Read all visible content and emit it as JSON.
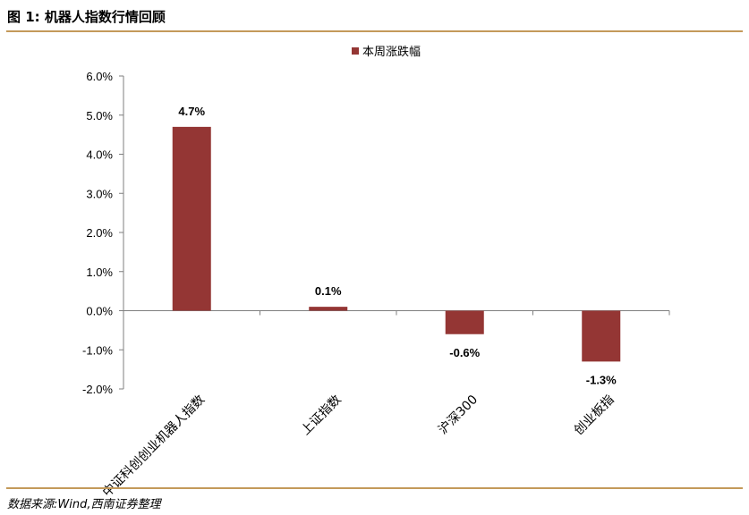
{
  "figure": {
    "title": "图 1:  机器人指数行情回顾",
    "source": "数据来源:Wind,西南证券整理"
  },
  "chart_data": {
    "type": "bar",
    "categories": [
      "中证科创创业机器人指数",
      "上证指数",
      "沪深300",
      "创业板指"
    ],
    "series": [
      {
        "name": "本周涨跌幅",
        "values": [
          4.7,
          0.1,
          -0.6,
          -1.3
        ],
        "color": "#943634"
      }
    ],
    "data_labels": [
      "4.7%",
      "0.1%",
      "-0.6%",
      "-1.3%"
    ],
    "y_ticks": [
      "-2.0%",
      "-1.0%",
      "0.0%",
      "1.0%",
      "2.0%",
      "3.0%",
      "4.0%",
      "5.0%",
      "6.0%"
    ],
    "ylim": [
      -2.0,
      6.0
    ],
    "legend_position": "top-center",
    "grid": false
  }
}
